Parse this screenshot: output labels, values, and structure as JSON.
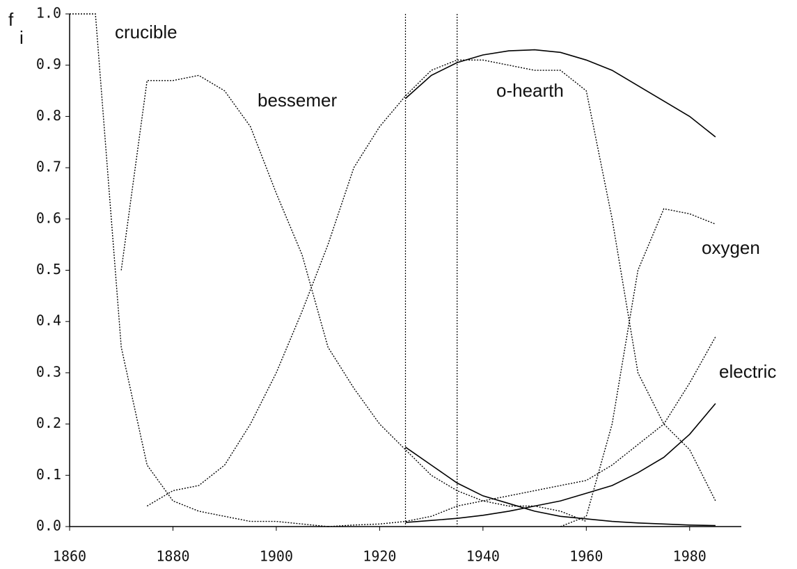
{
  "chart_data": {
    "type": "line",
    "ylabel": "f",
    "ylabel_sub": "i",
    "x": [
      1860,
      1865,
      1870,
      1875,
      1880,
      1885,
      1890,
      1895,
      1900,
      1905,
      1910,
      1915,
      1920,
      1925,
      1930,
      1935,
      1940,
      1945,
      1950,
      1955,
      1960,
      1965,
      1970,
      1975,
      1980,
      1985
    ],
    "series": [
      {
        "name": "crucible",
        "color": "#000000",
        "dash": "dotted",
        "values": [
          1.0,
          1.0,
          0.35,
          0.12,
          0.05,
          0.03,
          0.02,
          0.01,
          0.01,
          0.005,
          0.0,
          null,
          null,
          null,
          null,
          null,
          null,
          null,
          null,
          null,
          null,
          null,
          null,
          null,
          null,
          null
        ]
      },
      {
        "name": "bessemer",
        "color": "#000000",
        "dash": "dotted",
        "values": [
          null,
          null,
          0.5,
          0.87,
          0.87,
          0.88,
          0.85,
          0.78,
          0.65,
          0.53,
          0.35,
          0.27,
          0.2,
          0.15,
          0.1,
          0.07,
          0.05,
          0.04,
          0.04,
          0.03,
          0.01,
          null,
          null,
          null,
          null,
          null
        ]
      },
      {
        "name": "o-hearth",
        "color": "#000000",
        "dash": "dotted",
        "values": [
          null,
          null,
          null,
          0.04,
          0.07,
          0.08,
          0.12,
          0.2,
          0.3,
          0.42,
          0.55,
          0.7,
          0.78,
          0.84,
          0.89,
          0.91,
          0.91,
          0.9,
          0.89,
          0.89,
          0.85,
          0.6,
          0.3,
          0.2,
          0.15,
          0.05
        ]
      },
      {
        "name": "oxygen",
        "color": "#000000",
        "dash": "dotted",
        "values": [
          null,
          null,
          null,
          null,
          null,
          null,
          null,
          null,
          null,
          null,
          null,
          null,
          null,
          null,
          null,
          null,
          null,
          null,
          null,
          0.0,
          0.02,
          0.2,
          0.5,
          0.62,
          0.61,
          0.59
        ]
      },
      {
        "name": "electric",
        "color": "#000000",
        "dash": "dotted",
        "values": [
          null,
          null,
          null,
          null,
          null,
          null,
          null,
          null,
          null,
          null,
          0.0,
          0.003,
          0.005,
          0.01,
          0.02,
          0.04,
          0.05,
          0.06,
          0.07,
          0.08,
          0.09,
          0.12,
          0.16,
          0.2,
          0.28,
          0.37
        ]
      },
      {
        "color": "#000000",
        "dash": "solid",
        "values": [
          null,
          null,
          null,
          null,
          null,
          null,
          null,
          null,
          null,
          null,
          null,
          null,
          null,
          0.835,
          0.88,
          0.905,
          0.92,
          0.928,
          0.93,
          0.925,
          0.91,
          0.89,
          0.86,
          0.83,
          0.8,
          0.76
        ]
      },
      {
        "color": "#000000",
        "dash": "solid",
        "values": [
          null,
          null,
          null,
          null,
          null,
          null,
          null,
          null,
          null,
          null,
          null,
          null,
          null,
          0.155,
          0.12,
          0.085,
          0.06,
          0.045,
          0.03,
          0.02,
          0.015,
          0.01,
          0.007,
          0.005,
          0.003,
          0.002
        ]
      },
      {
        "color": "#000000",
        "dash": "solid",
        "values": [
          null,
          null,
          null,
          null,
          null,
          null,
          null,
          null,
          null,
          null,
          null,
          null,
          null,
          0.008,
          0.012,
          0.016,
          0.022,
          0.03,
          0.04,
          0.05,
          0.065,
          0.08,
          0.105,
          0.135,
          0.18,
          0.24
        ]
      }
    ],
    "vlines": [
      1925,
      1935
    ],
    "xlim": [
      1860,
      1990
    ],
    "ylim": [
      0,
      1
    ],
    "xticks": [
      1860,
      1880,
      1900,
      1920,
      1940,
      1960,
      1980
    ],
    "yticks": [
      {
        "value": 0,
        "label": "0.0"
      },
      0.1,
      0.2,
      0.3,
      0.4,
      0.5,
      0.6,
      0.7,
      0.8,
      0.9,
      {
        "value": 1,
        "label": "1.0"
      }
    ],
    "grid": false
  }
}
